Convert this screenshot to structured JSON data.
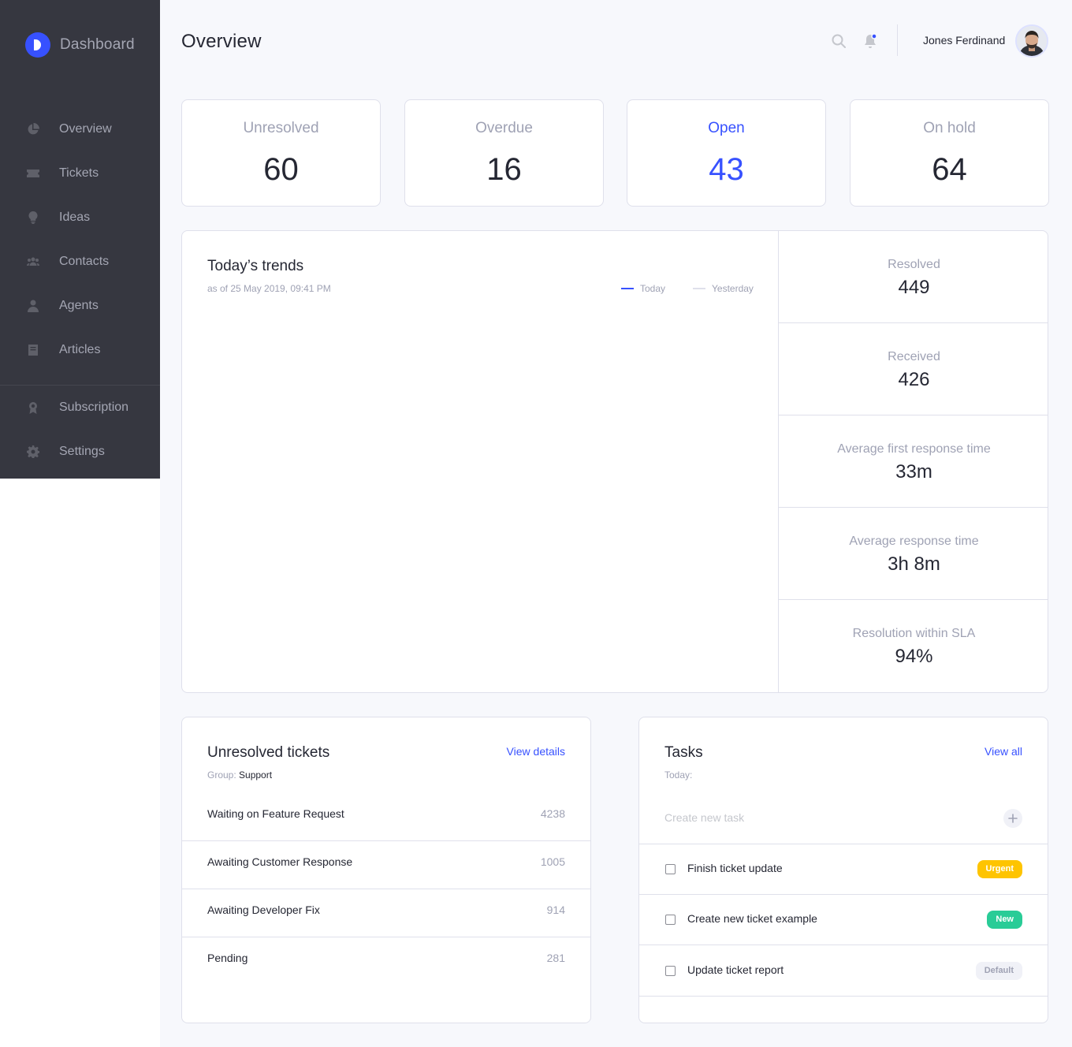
{
  "brand": {
    "title": "Dashboard",
    "logo_color": "#3751ff"
  },
  "sidebar": {
    "items": [
      {
        "label": "Overview",
        "icon": "pie-chart-icon"
      },
      {
        "label": "Tickets",
        "icon": "ticket-icon"
      },
      {
        "label": "Ideas",
        "icon": "lightbulb-icon"
      },
      {
        "label": "Contacts",
        "icon": "contacts-icon"
      },
      {
        "label": "Agents",
        "icon": "agent-icon"
      },
      {
        "label": "Articles",
        "icon": "book-icon"
      }
    ],
    "bottom_items": [
      {
        "label": "Subscription",
        "icon": "award-icon"
      },
      {
        "label": "Settings",
        "icon": "gear-icon"
      }
    ]
  },
  "header": {
    "title": "Overview",
    "user_name": "Jones Ferdinand",
    "search_icon": "search-icon",
    "bell_icon": "bell-icon"
  },
  "stats": [
    {
      "label": "Unresolved",
      "value": "60"
    },
    {
      "label": "Overdue",
      "value": "16"
    },
    {
      "label": "Open",
      "value": "43",
      "active": true
    },
    {
      "label": "On hold",
      "value": "64"
    }
  ],
  "trends": {
    "title": "Today’s trends",
    "subtitle": "as of 25 May 2019, 09:41 PM",
    "legend": [
      {
        "label": "Today",
        "color": "#3751ff"
      },
      {
        "label": "Yesterday",
        "color": "#dfe0eb"
      }
    ],
    "side_stats": [
      {
        "label": "Resolved",
        "value": "449"
      },
      {
        "label": "Received",
        "value": "426"
      },
      {
        "label": "Average first response time",
        "value": "33m"
      },
      {
        "label": "Average response time",
        "value": "3h 8m"
      },
      {
        "label": "Resolution within SLA",
        "value": "94%"
      }
    ]
  },
  "unresolved": {
    "title": "Unresolved tickets",
    "link": "View details",
    "group_label": "Group:",
    "group_value": "Support",
    "rows": [
      {
        "label": "Waiting on Feature Request",
        "count": "4238"
      },
      {
        "label": "Awaiting Customer Response",
        "count": "1005"
      },
      {
        "label": "Awaiting Developer Fix",
        "count": "914"
      },
      {
        "label": "Pending",
        "count": "281"
      }
    ]
  },
  "tasks": {
    "title": "Tasks",
    "link": "View all",
    "subtitle": "Today:",
    "new_task_placeholder": "Create new task",
    "items": [
      {
        "label": "Finish ticket update",
        "badge": "Urgent",
        "badge_color": "#fec400"
      },
      {
        "label": "Create new ticket example",
        "badge": "New",
        "badge_color": "#29cc97"
      },
      {
        "label": "Update ticket report",
        "badge": "Default",
        "badge_color": "#f0f1f7"
      }
    ]
  }
}
